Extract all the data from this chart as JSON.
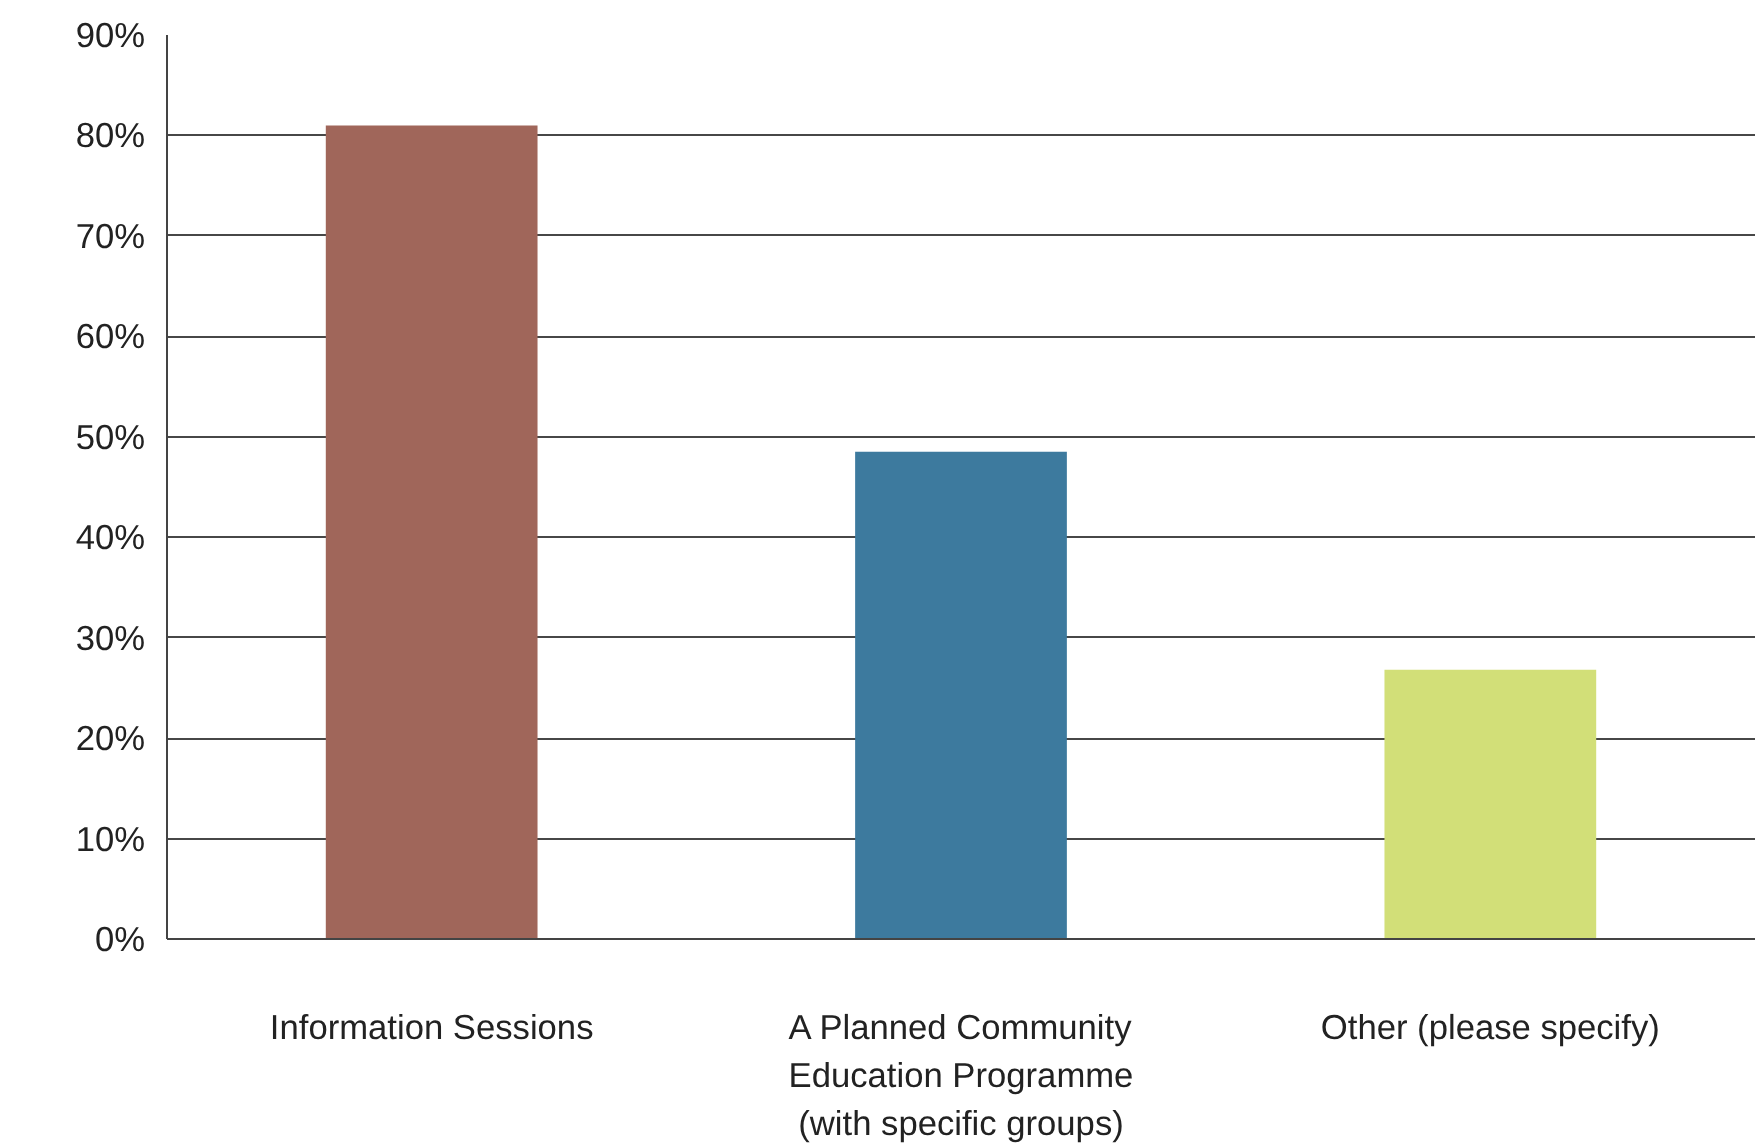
{
  "chart_data": {
    "type": "bar",
    "categories": [
      "Information Sessions",
      "A Planned Community\nEducation Programme\n(with specific groups)",
      "Other (please specify)"
    ],
    "values": [
      81,
      48.5,
      26.8
    ],
    "colors": [
      "#a0665a",
      "#3d7a9e",
      "#d2df78"
    ],
    "ylim": [
      0,
      90
    ],
    "yticks": [
      {
        "value": 0,
        "label": "0%"
      },
      {
        "value": 10,
        "label": "10%"
      },
      {
        "value": 20,
        "label": "20%"
      },
      {
        "value": 30,
        "label": "30%"
      },
      {
        "value": 40,
        "label": "40%"
      },
      {
        "value": 50,
        "label": "50%"
      },
      {
        "value": 60,
        "label": "60%"
      },
      {
        "value": 70,
        "label": "70%"
      },
      {
        "value": 80,
        "label": "80%"
      },
      {
        "value": 90,
        "label": "90%"
      }
    ],
    "grid": "y"
  }
}
